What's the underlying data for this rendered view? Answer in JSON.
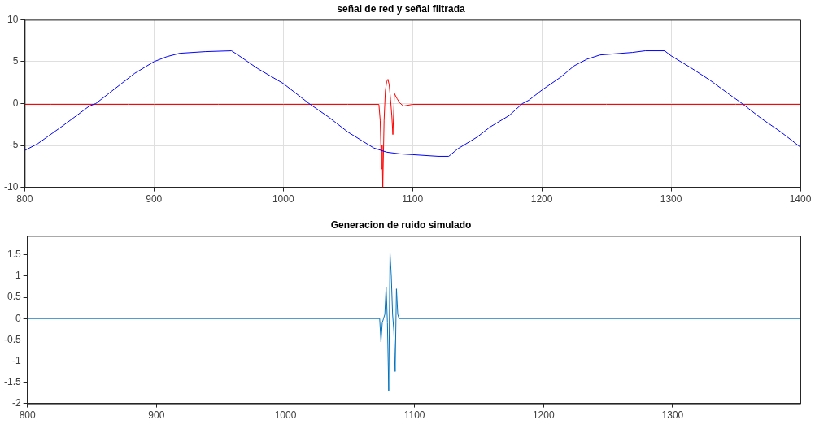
{
  "chart_data": [
    {
      "type": "line",
      "title": "señal de red y señal filtrada",
      "xlim": [
        800,
        1400
      ],
      "xticks": [
        800,
        900,
        1000,
        1100,
        1200,
        1300,
        1400
      ],
      "ylim": [
        -10,
        10
      ],
      "yticks": [
        -10,
        -5,
        0,
        5,
        10
      ],
      "grid": true,
      "series": [
        {
          "color": "#0000ff",
          "x": [
            800,
            810,
            830,
            850,
            855,
            870,
            885,
            900,
            910,
            920,
            940,
            960,
            965,
            980,
            1000,
            1020,
            1035,
            1050,
            1070,
            1080,
            1090,
            1100,
            1120,
            1128,
            1135,
            1150,
            1160,
            1175,
            1185,
            1190,
            1200,
            1215,
            1225,
            1235,
            1245,
            1270,
            1280,
            1295,
            1300,
            1315,
            1330,
            1345,
            1355,
            1360,
            1370,
            1385,
            1400
          ],
          "values": [
            -5.6,
            -4.8,
            -2.6,
            -0.3,
            0,
            1.8,
            3.6,
            5,
            5.6,
            6,
            6.2,
            6.3,
            5.8,
            4.2,
            2.4,
            0,
            -1.6,
            -3.4,
            -5.3,
            -5.8,
            -6.0,
            -6.1,
            -6.3,
            -6.3,
            -5.4,
            -4,
            -2.8,
            -1.4,
            0,
            0.4,
            1.6,
            3.2,
            4.5,
            5.3,
            5.8,
            6.1,
            6.3,
            6.3,
            5.7,
            4.3,
            2.8,
            1.1,
            0,
            -0.6,
            -1.8,
            -3.4,
            -5.2
          ]
        },
        {
          "color": "#ff0000",
          "x": [
            800,
            820,
            850,
            880,
            900,
            950,
            1000,
            1050,
            1074,
            1075,
            1076,
            1076.5,
            1077,
            1078,
            1079,
            1080,
            1081,
            1082,
            1083,
            1084,
            1084.8,
            1086,
            1088,
            1090,
            1093,
            1100,
            1150,
            1200,
            1250,
            1300,
            1350,
            1400
          ],
          "values": [
            -0.1,
            -0.1,
            -0.1,
            -0.1,
            -0.1,
            -0.1,
            -0.1,
            -0.1,
            -0.1,
            -2,
            -7.8,
            -5,
            -10,
            -2,
            1.5,
            2.6,
            2.9,
            2.2,
            0.5,
            -1.5,
            -3.7,
            1.2,
            0.6,
            0.1,
            -0.3,
            -0.1,
            -0.1,
            -0.1,
            -0.1,
            -0.1,
            -0.1,
            -0.1
          ]
        }
      ]
    },
    {
      "type": "line",
      "title": "Generacion de ruido simulado",
      "xlim": [
        800,
        1399
      ],
      "xticks": [
        800,
        900,
        1000,
        1100,
        1200,
        1300
      ],
      "ylim": [
        -2,
        1.95
      ],
      "yticks": [
        -2,
        -1.5,
        -1,
        -0.5,
        0,
        0.5,
        1,
        1.5
      ],
      "grid": false,
      "series": [
        {
          "color": "#0072bd",
          "x": [
            800,
            1073,
            1074,
            1075,
            1076,
            1077,
            1078,
            1079,
            1080,
            1081,
            1082,
            1083,
            1084,
            1085,
            1086,
            1087,
            1088,
            1399
          ],
          "values": [
            0,
            0,
            -0.55,
            -0.1,
            0,
            0.1,
            0.75,
            -0.1,
            -1.7,
            1.55,
            1.0,
            0.1,
            -0.3,
            -1.25,
            0.7,
            0.1,
            0,
            0
          ]
        }
      ]
    }
  ]
}
